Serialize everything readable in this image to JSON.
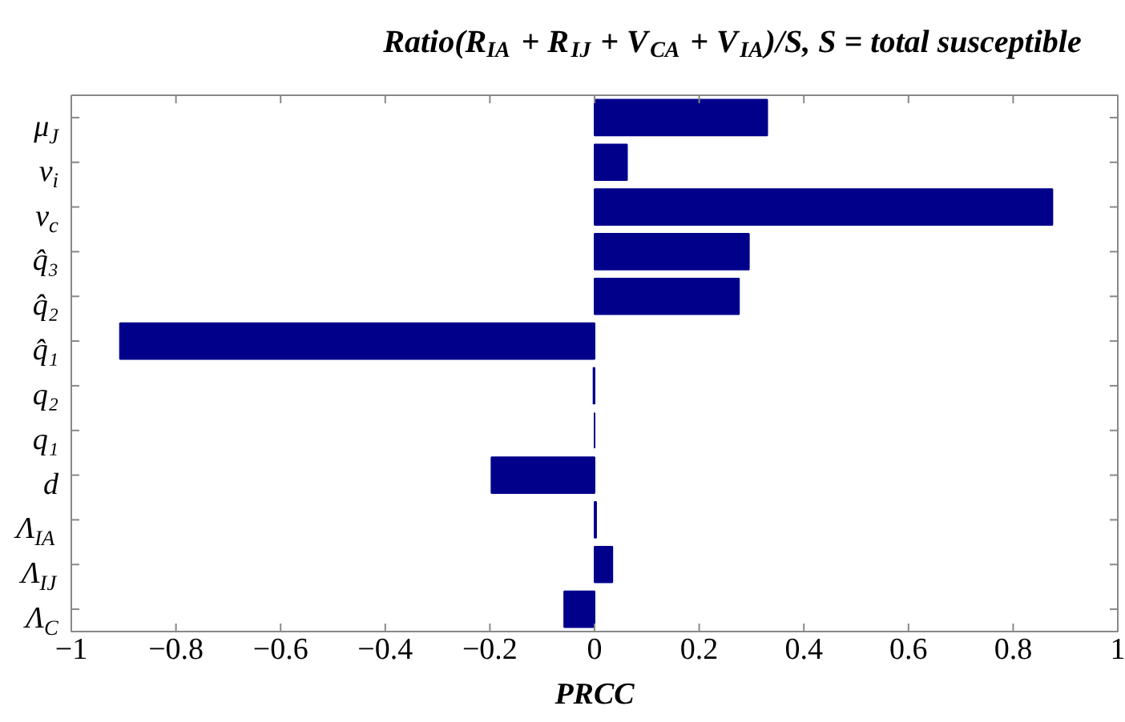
{
  "chart_data": {
    "type": "bar",
    "orientation": "horizontal",
    "title": "Ratio(R$_{IA}$ + R$_{IJ}$ + V$_{CA}$ + V$_{IA}$)/S, S = total susceptible",
    "xlabel": "PRCC",
    "categories": [
      "μ$_{J}$",
      "ν$_{i}$",
      "ν$_{c}$",
      "q̂₃",
      "q̂₂",
      "q̂₁",
      "q₂",
      "q₁",
      "d",
      "Λ$_{IA}$",
      "Λ$_{IJ}$",
      "Λ$_{C}$"
    ],
    "values": [
      0.33,
      0.062,
      0.875,
      0.295,
      0.276,
      -0.907,
      -0.002,
      0,
      -0.197,
      0.003,
      0.034,
      -0.058
    ],
    "color": "#00008b",
    "xlim": [
      -1,
      1
    ],
    "xticks": [
      {
        "value": -1,
        "label": "−1"
      },
      {
        "value": -0.8,
        "label": "−0.8"
      },
      {
        "value": -0.6,
        "label": "−0.6"
      },
      {
        "value": -0.4,
        "label": "−0.4"
      },
      {
        "value": -0.2,
        "label": "−0.2"
      },
      0,
      0.2,
      0.4,
      0.6,
      0.8,
      1
    ],
    "grid": false
  }
}
